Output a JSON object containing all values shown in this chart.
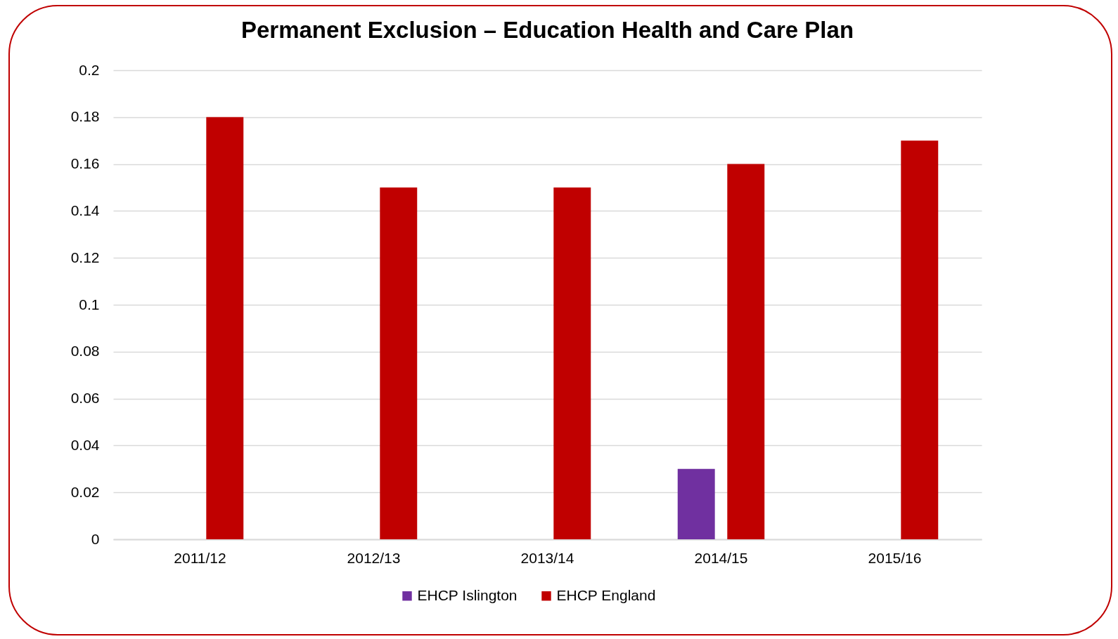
{
  "chart_data": {
    "type": "bar",
    "title": "Permanent Exclusion – Education Health and Care Plan",
    "categories": [
      "2011/12",
      "2012/13",
      "2013/14",
      "2014/15",
      "2015/16"
    ],
    "series": [
      {
        "name": "EHCP Islington",
        "color": "#7030a0",
        "values": [
          0,
          0,
          0,
          0.03,
          0
        ]
      },
      {
        "name": "EHCP England",
        "color": "#c00000",
        "values": [
          0.18,
          0.15,
          0.15,
          0.16,
          0.17
        ]
      }
    ],
    "ylim": [
      0,
      0.2
    ],
    "yticks": [
      0,
      0.02,
      0.04,
      0.06,
      0.08,
      0.1,
      0.12,
      0.14,
      0.16,
      0.18,
      0.2
    ],
    "grid": "y",
    "legend": "bottom"
  }
}
